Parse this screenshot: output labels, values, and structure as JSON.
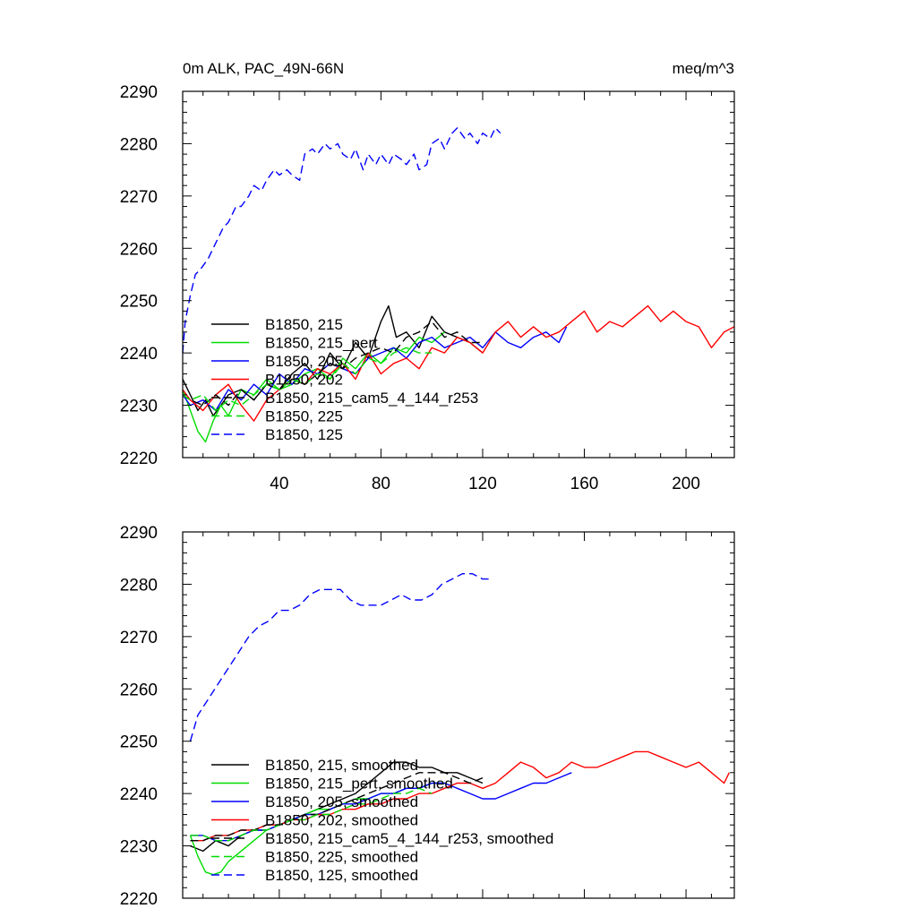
{
  "chart_data": [
    {
      "type": "line",
      "title": "0m ALK, PAC_49N-66N",
      "units": "meq/m^3",
      "xlim": [
        2,
        219
      ],
      "ylim": [
        2220,
        2290
      ],
      "xticks": [
        40,
        80,
        120,
        160,
        200
      ],
      "yticks": [
        2220,
        2230,
        2240,
        2250,
        2260,
        2270,
        2280,
        2290
      ],
      "xlabel": "",
      "ylabel": "",
      "grid": false,
      "legend_position": "lower-left",
      "series": [
        {
          "name": "B1850, 215",
          "color": "#000000",
          "dash": "solid",
          "x": [
            2,
            5,
            8,
            11,
            14,
            17,
            20,
            25,
            30,
            35,
            40,
            45,
            50,
            55,
            60,
            65,
            70,
            75,
            80,
            83,
            86,
            90,
            95,
            100,
            105,
            110,
            115,
            120
          ],
          "y": [
            2235,
            2232,
            2229,
            2231,
            2228,
            2230,
            2232,
            2233,
            2231,
            2234,
            2233,
            2236,
            2238,
            2235,
            2240,
            2237,
            2242,
            2239,
            2246,
            2249,
            2243,
            2244,
            2241,
            2247,
            2244,
            2243,
            2242,
            2240
          ]
        },
        {
          "name": "B1850, 215_pert",
          "color": "#00dd00",
          "dash": "solid",
          "x": [
            2,
            5,
            8,
            11,
            14,
            17,
            20,
            25,
            30,
            35,
            40,
            45,
            50,
            55,
            60,
            65,
            70,
            75,
            80,
            85,
            90,
            95,
            100,
            105
          ],
          "y": [
            2233,
            2229,
            2225,
            2223,
            2227,
            2230,
            2228,
            2233,
            2232,
            2235,
            2233,
            2234,
            2236,
            2237,
            2235,
            2239,
            2237,
            2240,
            2238,
            2241,
            2240,
            2243,
            2242,
            2244
          ]
        },
        {
          "name": "B1850, 205",
          "color": "#0000ff",
          "dash": "solid",
          "x": [
            2,
            5,
            10,
            15,
            20,
            25,
            30,
            35,
            40,
            45,
            50,
            55,
            60,
            65,
            70,
            75,
            80,
            85,
            90,
            95,
            100,
            105,
            110,
            115,
            120,
            125,
            130,
            135,
            140,
            145,
            150,
            153
          ],
          "y": [
            2232,
            2230,
            2231,
            2229,
            2233,
            2231,
            2234,
            2232,
            2236,
            2234,
            2237,
            2236,
            2238,
            2237,
            2236,
            2239,
            2240,
            2241,
            2239,
            2242,
            2243,
            2241,
            2242,
            2243,
            2241,
            2244,
            2242,
            2241,
            2243,
            2244,
            2242,
            2245
          ]
        },
        {
          "name": "B1850, 202",
          "color": "#ff0000",
          "dash": "solid",
          "x": [
            2,
            5,
            10,
            15,
            20,
            25,
            30,
            35,
            40,
            45,
            50,
            55,
            60,
            65,
            70,
            75,
            80,
            85,
            90,
            95,
            100,
            105,
            110,
            115,
            120,
            125,
            130,
            135,
            140,
            145,
            150,
            155,
            160,
            165,
            170,
            175,
            180,
            185,
            190,
            195,
            200,
            205,
            210,
            215,
            219
          ],
          "y": [
            2233,
            2231,
            2229,
            2232,
            2234,
            2230,
            2227,
            2231,
            2233,
            2235,
            2234,
            2237,
            2236,
            2238,
            2235,
            2240,
            2236,
            2238,
            2239,
            2237,
            2241,
            2240,
            2243,
            2242,
            2240,
            2244,
            2246,
            2243,
            2245,
            2243,
            2244,
            2246,
            2248,
            2244,
            2246,
            2245,
            2247,
            2249,
            2246,
            2248,
            2246,
            2245,
            2241,
            2244,
            2245
          ]
        },
        {
          "name": "B1850, 215_cam5_4_144_r253",
          "color": "#000000",
          "dash": "dash",
          "x": [
            2,
            5,
            10,
            15,
            20,
            25,
            30,
            35,
            40,
            45,
            50,
            55,
            60,
            65,
            70,
            75,
            80,
            85,
            90,
            95,
            100,
            105,
            110,
            115,
            120
          ],
          "y": [
            2232,
            2231,
            2230,
            2232,
            2230,
            2233,
            2231,
            2234,
            2233,
            2235,
            2234,
            2236,
            2238,
            2237,
            2239,
            2240,
            2241,
            2240,
            2243,
            2244,
            2246,
            2243,
            2244,
            2242,
            2242
          ]
        },
        {
          "name": "B1850, 225",
          "color": "#00dd00",
          "dash": "dash",
          "x": [
            2,
            5,
            10,
            15,
            20,
            25,
            30,
            35,
            40,
            45,
            50,
            55,
            60,
            65,
            70,
            75,
            80,
            85,
            90,
            95,
            100
          ],
          "y": [
            2232,
            2231,
            2232,
            2229,
            2231,
            2230,
            2232,
            2234,
            2233,
            2235,
            2234,
            2236,
            2235,
            2238,
            2236,
            2239,
            2238,
            2240,
            2241,
            2240,
            2240
          ]
        },
        {
          "name": "B1850, 125",
          "color": "#0000ff",
          "dash": "dash",
          "x": [
            2,
            3,
            5,
            7,
            9,
            12,
            15,
            18,
            20,
            23,
            25,
            28,
            30,
            33,
            35,
            38,
            40,
            43,
            45,
            48,
            50,
            53,
            55,
            58,
            60,
            63,
            65,
            68,
            70,
            73,
            75,
            78,
            80,
            83,
            85,
            88,
            90,
            93,
            95,
            98,
            100,
            103,
            105,
            108,
            110,
            113,
            115,
            118,
            120,
            123,
            125,
            127
          ],
          "y": [
            2240,
            2246,
            2251,
            2255,
            2256,
            2258,
            2261,
            2264,
            2265,
            2268,
            2268,
            2270,
            2272,
            2271,
            2273,
            2275,
            2274,
            2275,
            2274,
            2273,
            2278,
            2279,
            2278,
            2280,
            2279,
            2280,
            2278,
            2277,
            2279,
            2275,
            2278,
            2276,
            2278,
            2276,
            2278,
            2277,
            2276,
            2278,
            2275,
            2276,
            2280,
            2281,
            2279,
            2282,
            2283,
            2281,
            2282,
            2280,
            2282,
            2281,
            2283,
            2282
          ]
        }
      ]
    },
    {
      "type": "line",
      "title": "",
      "units": "",
      "xlim": [
        2,
        219
      ],
      "ylim": [
        2220,
        2290
      ],
      "xticks": [
        40,
        80,
        120,
        160,
        200
      ],
      "yticks": [
        2220,
        2230,
        2240,
        2250,
        2260,
        2270,
        2280,
        2290
      ],
      "xlabel": "",
      "ylabel": "",
      "grid": false,
      "legend_position": "lower-left",
      "series": [
        {
          "name": "B1850, 215, smoothed",
          "color": "#000000",
          "dash": "solid",
          "x": [
            5,
            10,
            15,
            20,
            25,
            30,
            35,
            40,
            45,
            50,
            55,
            60,
            65,
            70,
            75,
            80,
            85,
            90,
            95,
            100,
            105,
            110,
            115,
            120
          ],
          "y": [
            2230,
            2229,
            2231,
            2230,
            2232,
            2233,
            2233,
            2234,
            2235,
            2236,
            2237,
            2238,
            2239,
            2240,
            2242,
            2244,
            2246,
            2246,
            2245,
            2245,
            2244,
            2244,
            2243,
            2242
          ]
        },
        {
          "name": "B1850, 215_pert, smoothed",
          "color": "#00dd00",
          "dash": "solid",
          "x": [
            5,
            8,
            11,
            14,
            17,
            20,
            25,
            30,
            35,
            40,
            45,
            50,
            55,
            60,
            65,
            70,
            75,
            80,
            85,
            90,
            95,
            100,
            105
          ],
          "y": [
            2232,
            2228,
            2225,
            2224.5,
            2225,
            2227,
            2229,
            2231,
            2233,
            2234,
            2235,
            2236,
            2237,
            2237,
            2238,
            2239,
            2239,
            2240,
            2240,
            2241,
            2241,
            2242,
            2242
          ]
        },
        {
          "name": "B1850, 205, smoothed",
          "color": "#0000ff",
          "dash": "solid",
          "x": [
            5,
            10,
            15,
            20,
            25,
            30,
            35,
            40,
            45,
            50,
            55,
            60,
            65,
            70,
            75,
            80,
            85,
            90,
            95,
            100,
            105,
            110,
            115,
            120,
            125,
            130,
            135,
            140,
            145,
            150,
            155
          ],
          "y": [
            2232,
            2232,
            2231,
            2231,
            2232,
            2233,
            2233,
            2234,
            2235,
            2236,
            2236,
            2237,
            2238,
            2238,
            2239,
            2240,
            2240,
            2241,
            2241,
            2242,
            2242,
            2241,
            2240,
            2239,
            2239,
            2240,
            2241,
            2242,
            2242,
            2243,
            2244
          ]
        },
        {
          "name": "B1850, 202, smoothed",
          "color": "#ff0000",
          "dash": "solid",
          "x": [
            5,
            10,
            15,
            20,
            25,
            30,
            35,
            40,
            45,
            50,
            55,
            60,
            65,
            70,
            75,
            80,
            85,
            90,
            95,
            100,
            105,
            110,
            115,
            120,
            125,
            130,
            135,
            140,
            145,
            150,
            155,
            160,
            165,
            170,
            175,
            180,
            185,
            190,
            195,
            200,
            205,
            210,
            215,
            217
          ],
          "y": [
            2231,
            2231,
            2232,
            2232,
            2233,
            2233,
            2234,
            2234,
            2235,
            2235,
            2236,
            2236,
            2237,
            2237,
            2238,
            2238,
            2239,
            2239,
            2240,
            2240,
            2241,
            2242,
            2242,
            2241,
            2242,
            2244,
            2246,
            2245,
            2243,
            2244,
            2246,
            2245,
            2245,
            2246,
            2247,
            2248,
            2248,
            2247,
            2246,
            2245,
            2246,
            2244,
            2242,
            2244
          ]
        },
        {
          "name": "B1850, 215_cam5_4_144_r253, smoothed",
          "color": "#000000",
          "dash": "dash",
          "x": [
            5,
            10,
            15,
            20,
            25,
            30,
            35,
            40,
            45,
            50,
            55,
            60,
            65,
            70,
            75,
            80,
            85,
            90,
            95,
            100,
            105,
            110,
            115,
            120
          ],
          "y": [
            2231,
            2231,
            2232,
            2232,
            2233,
            2233,
            2234,
            2234,
            2235,
            2236,
            2236,
            2237,
            2238,
            2239,
            2240,
            2241,
            2242,
            2243,
            2244,
            2244,
            2244,
            2243,
            2242,
            2243
          ]
        },
        {
          "name": "B1850, 225, smoothed",
          "color": "#00dd00",
          "dash": "dash",
          "x": [
            5,
            10,
            15,
            20,
            25,
            30,
            35,
            40,
            45,
            50,
            55,
            60,
            65,
            70,
            75,
            80,
            85,
            90,
            95,
            100
          ],
          "y": [
            2232,
            2232,
            2231,
            2231,
            2232,
            2233,
            2233,
            2234,
            2235,
            2235,
            2236,
            2236,
            2237,
            2238,
            2238,
            2239,
            2240,
            2240,
            2241,
            2240
          ]
        },
        {
          "name": "B1850, 125, smoothed",
          "color": "#0000ff",
          "dash": "dash",
          "x": [
            5,
            8,
            12,
            16,
            20,
            24,
            28,
            32,
            36,
            40,
            44,
            48,
            52,
            56,
            60,
            64,
            68,
            72,
            76,
            80,
            84,
            88,
            92,
            96,
            100,
            104,
            108,
            112,
            116,
            120,
            124
          ],
          "y": [
            2250,
            2255,
            2258,
            2261,
            2264,
            2267,
            2270,
            2272,
            2273,
            2275,
            2275,
            2276,
            2278,
            2279,
            2279,
            2279,
            2277,
            2276,
            2276,
            2276,
            2277,
            2278,
            2277,
            2277,
            2278,
            2280,
            2281,
            2282,
            2282,
            2281,
            2281
          ]
        }
      ]
    }
  ]
}
